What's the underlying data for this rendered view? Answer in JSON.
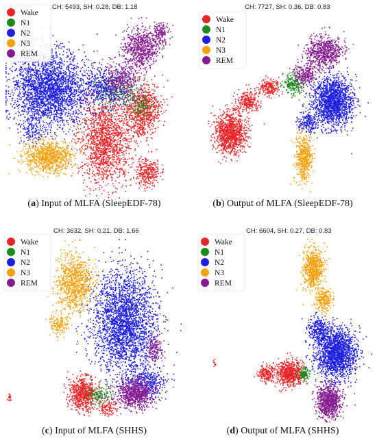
{
  "classes": [
    {
      "name": "Wake",
      "color": "#e8262a"
    },
    {
      "name": "N1",
      "color": "#1e8a1e"
    },
    {
      "name": "N2",
      "color": "#1f1fe0"
    },
    {
      "name": "N3",
      "color": "#f4a20e"
    },
    {
      "name": "REM",
      "color": "#851c8f"
    }
  ],
  "chart_data": [
    {
      "type": "scatter",
      "panel_label": "a",
      "caption": "Input of MLFA (SleepEDF-78)",
      "metrics_text": "CH: 5493, SH: 0.28, DB: 1.18",
      "legend": [
        "Wake",
        "N1",
        "N2",
        "N3",
        "REM"
      ],
      "series": [
        {
          "name": "Wake",
          "clusters": [
            [
              0.55,
              0.68,
              0.13,
              0.22,
              1600
            ],
            [
              0.76,
              0.52,
              0.09,
              0.14,
              800
            ],
            [
              0.79,
              0.86,
              0.06,
              0.07,
              300
            ]
          ]
        },
        {
          "name": "N1",
          "clusters": [
            [
              0.62,
              0.4,
              0.12,
              0.08,
              240
            ],
            [
              0.75,
              0.5,
              0.06,
              0.05,
              100
            ]
          ]
        },
        {
          "name": "N2",
          "clusters": [
            [
              0.24,
              0.4,
              0.19,
              0.18,
              2600
            ],
            [
              0.55,
              0.39,
              0.14,
              0.1,
              500
            ],
            [
              0.14,
              0.63,
              0.06,
              0.06,
              120
            ]
          ]
        },
        {
          "name": "N3",
          "clusters": [
            [
              0.24,
              0.77,
              0.12,
              0.08,
              900
            ]
          ]
        },
        {
          "name": "REM",
          "clusters": [
            [
              0.75,
              0.18,
              0.09,
              0.1,
              700
            ],
            [
              0.64,
              0.34,
              0.08,
              0.08,
              300
            ],
            [
              0.86,
              0.1,
              0.04,
              0.05,
              150
            ]
          ]
        }
      ]
    },
    {
      "type": "scatter",
      "panel_label": "b",
      "caption": "Output of MLFA (SleepEDF-78)",
      "metrics_text": "CH: 7727, SH: 0.36, DB: 0.83",
      "legend": [
        "Wake",
        "N1",
        "N2",
        "N3",
        "REM"
      ],
      "series": [
        {
          "name": "Wake",
          "clusters": [
            [
              0.2,
              0.64,
              0.08,
              0.1,
              1100
            ],
            [
              0.3,
              0.47,
              0.06,
              0.05,
              260
            ],
            [
              0.42,
              0.39,
              0.05,
              0.04,
              220
            ]
          ]
        },
        {
          "name": "N1",
          "clusters": [
            [
              0.55,
              0.37,
              0.05,
              0.05,
              220
            ]
          ]
        },
        {
          "name": "N2",
          "clusters": [
            [
              0.77,
              0.47,
              0.1,
              0.12,
              1700
            ],
            [
              0.63,
              0.58,
              0.05,
              0.05,
              200
            ]
          ]
        },
        {
          "name": "N3",
          "clusters": [
            [
              0.61,
              0.78,
              0.04,
              0.12,
              500
            ]
          ]
        },
        {
          "name": "REM",
          "clusters": [
            [
              0.72,
              0.2,
              0.09,
              0.08,
              700
            ],
            [
              0.62,
              0.32,
              0.06,
              0.05,
              250
            ]
          ]
        }
      ]
    },
    {
      "type": "scatter",
      "panel_label": "c",
      "caption": "Input of MLFA (SHHS)",
      "metrics_text": "CH: 3632, SH: 0.21, DB: 1.66",
      "legend": [
        "Wake",
        "N1",
        "N2",
        "N3",
        "REM"
      ],
      "series": [
        {
          "name": "Wake",
          "clusters": [
            [
              0.43,
              0.84,
              0.07,
              0.08,
              700
            ],
            [
              0.02,
              0.86,
              0.01,
              0.02,
              15
            ],
            [
              0.57,
              0.92,
              0.05,
              0.04,
              120
            ]
          ]
        },
        {
          "name": "N1",
          "clusters": [
            [
              0.52,
              0.85,
              0.06,
              0.05,
              120
            ]
          ]
        },
        {
          "name": "N2",
          "clusters": [
            [
              0.66,
              0.45,
              0.16,
              0.25,
              2700
            ],
            [
              0.78,
              0.78,
              0.1,
              0.08,
              400
            ]
          ]
        },
        {
          "name": "N3",
          "clusters": [
            [
              0.38,
              0.24,
              0.09,
              0.14,
              900
            ],
            [
              0.3,
              0.46,
              0.05,
              0.05,
              150
            ]
          ]
        },
        {
          "name": "REM",
          "clusters": [
            [
              0.72,
              0.84,
              0.09,
              0.07,
              800
            ],
            [
              0.83,
              0.6,
              0.04,
              0.06,
              150
            ]
          ]
        }
      ]
    },
    {
      "type": "scatter",
      "panel_label": "d",
      "caption": "Output of MLFA (SHHS)",
      "metrics_text": "CH: 6604, SH: 0.27, DB: 0.83",
      "legend": [
        "Wake",
        "N1",
        "N2",
        "N3",
        "REM"
      ],
      "series": [
        {
          "name": "Wake",
          "clusters": [
            [
              0.53,
              0.73,
              0.07,
              0.06,
              700
            ],
            [
              0.4,
              0.73,
              0.04,
              0.04,
              200
            ],
            [
              0.11,
              0.67,
              0.01,
              0.02,
              10
            ]
          ]
        },
        {
          "name": "N1",
          "clusters": [
            [
              0.61,
              0.73,
              0.03,
              0.03,
              110
            ]
          ]
        },
        {
          "name": "N2",
          "clusters": [
            [
              0.79,
              0.62,
              0.1,
              0.12,
              1800
            ],
            [
              0.69,
              0.49,
              0.05,
              0.07,
              300
            ]
          ]
        },
        {
          "name": "N3",
          "clusters": [
            [
              0.66,
              0.16,
              0.05,
              0.1,
              700
            ],
            [
              0.72,
              0.33,
              0.04,
              0.06,
              250
            ]
          ]
        },
        {
          "name": "REM",
          "clusters": [
            [
              0.75,
              0.88,
              0.06,
              0.08,
              900
            ]
          ]
        }
      ]
    }
  ]
}
